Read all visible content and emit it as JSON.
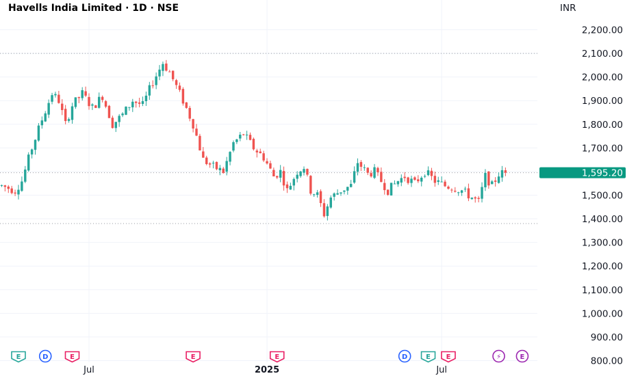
{
  "header": {
    "title": "Havells India Limited · 1D · NSE",
    "currency": "INR"
  },
  "colors": {
    "up": "#26a69a",
    "down": "#ef5350",
    "grid": "#f0f3fa",
    "price_tag": "#089981",
    "earnings": "#e91e63",
    "earnings_up": "#26a69a",
    "dividend": "#2962ff",
    "split": "#9c27b0"
  },
  "chart_data": {
    "type": "candlestick",
    "title": "Havells India Limited · 1D · NSE",
    "y_unit": "INR",
    "ylim": [
      800,
      2230
    ],
    "y_ticks": [
      2200,
      2100,
      2000,
      1900,
      1800,
      1700,
      1600,
      1500,
      1400,
      1300,
      1200,
      1100,
      1000,
      900,
      800
    ],
    "y_tick_labels": [
      "2,200.00",
      "2,100.00",
      "2,000.00",
      "1,900.00",
      "1,800.00",
      "1,700.00",
      "1,600.00",
      "1,500.00",
      "1,400.00",
      "1,300.00",
      "1,200.00",
      "1,100.00",
      "1,000.00",
      "900.00",
      "800.00"
    ],
    "x_ticks": [
      {
        "label": "Jul",
        "index": 26,
        "bold": false
      },
      {
        "label": "2025",
        "index": 79,
        "bold": true
      },
      {
        "label": "Jul",
        "index": 131,
        "bold": false
      }
    ],
    "current_price": 1595.2,
    "current_price_label": "1,595.20",
    "reference_lines": [
      2100,
      1595.2,
      1380
    ],
    "anchors": [
      [
        0,
        1540
      ],
      [
        4,
        1520
      ],
      [
        6,
        1560
      ],
      [
        9,
        1700
      ],
      [
        12,
        1820
      ],
      [
        15,
        1930
      ],
      [
        17,
        1900
      ],
      [
        19,
        1800
      ],
      [
        21,
        1880
      ],
      [
        24,
        1930
      ],
      [
        27,
        1870
      ],
      [
        30,
        1920
      ],
      [
        33,
        1800
      ],
      [
        36,
        1840
      ],
      [
        39,
        1900
      ],
      [
        42,
        1880
      ],
      [
        45,
        1980
      ],
      [
        48,
        2060
      ],
      [
        50,
        2020
      ],
      [
        54,
        1900
      ],
      [
        57,
        1800
      ],
      [
        60,
        1650
      ],
      [
        63,
        1620
      ],
      [
        66,
        1600
      ],
      [
        69,
        1720
      ],
      [
        72,
        1760
      ],
      [
        75,
        1700
      ],
      [
        78,
        1660
      ],
      [
        81,
        1580
      ],
      [
        83,
        1600
      ],
      [
        85,
        1520
      ],
      [
        88,
        1600
      ],
      [
        90,
        1620
      ],
      [
        92,
        1520
      ],
      [
        94,
        1500
      ],
      [
        96,
        1420
      ],
      [
        98,
        1490
      ],
      [
        101,
        1520
      ],
      [
        104,
        1540
      ],
      [
        106,
        1640
      ],
      [
        109,
        1590
      ],
      [
        111,
        1600
      ],
      [
        113,
        1560
      ],
      [
        115,
        1520
      ],
      [
        118,
        1560
      ],
      [
        120,
        1580
      ],
      [
        123,
        1550
      ],
      [
        126,
        1600
      ],
      [
        129,
        1560
      ],
      [
        132,
        1540
      ],
      [
        135,
        1530
      ],
      [
        137,
        1520
      ],
      [
        140,
        1490
      ],
      [
        142,
        1470
      ],
      [
        144,
        1580
      ],
      [
        146,
        1540
      ],
      [
        148,
        1590
      ],
      [
        150,
        1595.2
      ]
    ],
    "events": [
      {
        "type": "E",
        "index": 5,
        "style": "earnings-up"
      },
      {
        "type": "D",
        "index": 13,
        "style": "dividend"
      },
      {
        "type": "E",
        "index": 21,
        "style": "earnings-down"
      },
      {
        "type": "E",
        "index": 57,
        "style": "earnings-down"
      },
      {
        "type": "E",
        "index": 82,
        "style": "earnings-down"
      },
      {
        "type": "D",
        "index": 120,
        "style": "dividend"
      },
      {
        "type": "E",
        "index": 127,
        "style": "earnings-up"
      },
      {
        "type": "E",
        "index": 133,
        "style": "earnings-down"
      },
      {
        "type": "⚡",
        "index": 148,
        "style": "split"
      },
      {
        "type": "E",
        "index": 155,
        "style": "split"
      }
    ]
  }
}
